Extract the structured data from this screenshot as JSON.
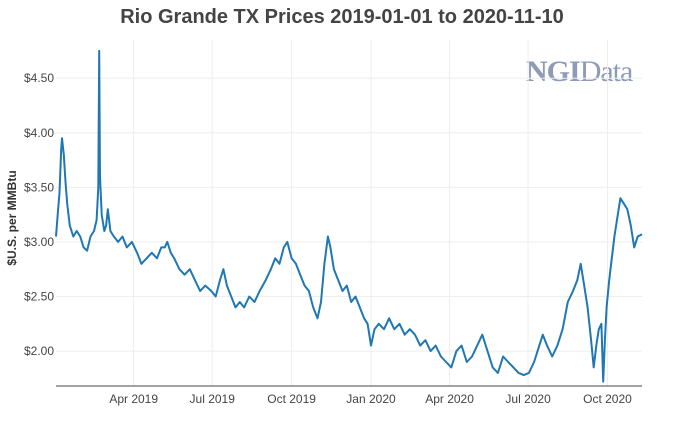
{
  "title": "Rio Grande TX Prices 2019-01-01 to 2020-11-10",
  "logo": {
    "part1": "NGI",
    "part2": "Data"
  },
  "chart_data": {
    "type": "line",
    "title": "Rio Grande TX Prices 2019-01-01 to 2020-11-10",
    "xlabel": "",
    "ylabel": "$U.S. per MMBtu",
    "xlim": [
      "2019-01-01",
      "2020-11-10"
    ],
    "ylim": [
      1.68,
      4.85
    ],
    "grid": true,
    "color": "#1f77b4",
    "x_ticks": [
      {
        "date": "2019-04-01",
        "label": "Apr 2019"
      },
      {
        "date": "2019-07-01",
        "label": "Jul 2019"
      },
      {
        "date": "2019-10-01",
        "label": "Oct 2019"
      },
      {
        "date": "2020-01-01",
        "label": "Jan 2020"
      },
      {
        "date": "2020-04-01",
        "label": "Apr 2020"
      },
      {
        "date": "2020-07-01",
        "label": "Jul 2020"
      },
      {
        "date": "2020-10-01",
        "label": "Oct 2020"
      }
    ],
    "y_ticks": [
      {
        "value": 2.0,
        "label": "$2.00"
      },
      {
        "value": 2.5,
        "label": "$2.50"
      },
      {
        "value": 3.0,
        "label": "$3.00"
      },
      {
        "value": 3.5,
        "label": "$3.50"
      },
      {
        "value": 4.0,
        "label": "$4.00"
      },
      {
        "value": 4.5,
        "label": "$4.50"
      }
    ],
    "series": [
      {
        "values": [
          [
            "2019-01-01",
            3.05
          ],
          [
            "2019-01-03",
            3.25
          ],
          [
            "2019-01-05",
            3.45
          ],
          [
            "2019-01-07",
            3.85
          ],
          [
            "2019-01-08",
            3.95
          ],
          [
            "2019-01-10",
            3.8
          ],
          [
            "2019-01-12",
            3.55
          ],
          [
            "2019-01-14",
            3.35
          ],
          [
            "2019-01-17",
            3.15
          ],
          [
            "2019-01-21",
            3.05
          ],
          [
            "2019-01-25",
            3.1
          ],
          [
            "2019-01-29",
            3.05
          ],
          [
            "2019-02-02",
            2.95
          ],
          [
            "2019-02-06",
            2.92
          ],
          [
            "2019-02-10",
            3.05
          ],
          [
            "2019-02-14",
            3.1
          ],
          [
            "2019-02-17",
            3.2
          ],
          [
            "2019-02-19",
            3.5
          ],
          [
            "2019-02-20",
            4.75
          ],
          [
            "2019-02-21",
            3.6
          ],
          [
            "2019-02-23",
            3.25
          ],
          [
            "2019-02-26",
            3.1
          ],
          [
            "2019-02-28",
            3.15
          ],
          [
            "2019-03-02",
            3.3
          ],
          [
            "2019-03-05",
            3.1
          ],
          [
            "2019-03-09",
            3.05
          ],
          [
            "2019-03-14",
            3.0
          ],
          [
            "2019-03-19",
            3.05
          ],
          [
            "2019-03-24",
            2.95
          ],
          [
            "2019-03-30",
            3.0
          ],
          [
            "2019-04-05",
            2.9
          ],
          [
            "2019-04-10",
            2.8
          ],
          [
            "2019-04-16",
            2.85
          ],
          [
            "2019-04-22",
            2.9
          ],
          [
            "2019-04-28",
            2.85
          ],
          [
            "2019-05-03",
            2.95
          ],
          [
            "2019-05-07",
            2.95
          ],
          [
            "2019-05-10",
            3.0
          ],
          [
            "2019-05-14",
            2.9
          ],
          [
            "2019-05-18",
            2.85
          ],
          [
            "2019-05-24",
            2.75
          ],
          [
            "2019-05-30",
            2.7
          ],
          [
            "2019-06-05",
            2.75
          ],
          [
            "2019-06-11",
            2.65
          ],
          [
            "2019-06-17",
            2.55
          ],
          [
            "2019-06-23",
            2.6
          ],
          [
            "2019-06-30",
            2.55
          ],
          [
            "2019-07-05",
            2.5
          ],
          [
            "2019-07-10",
            2.65
          ],
          [
            "2019-07-14",
            2.75
          ],
          [
            "2019-07-18",
            2.6
          ],
          [
            "2019-07-23",
            2.5
          ],
          [
            "2019-07-28",
            2.4
          ],
          [
            "2019-08-02",
            2.45
          ],
          [
            "2019-08-07",
            2.4
          ],
          [
            "2019-08-13",
            2.5
          ],
          [
            "2019-08-19",
            2.45
          ],
          [
            "2019-08-25",
            2.55
          ],
          [
            "2019-09-01",
            2.65
          ],
          [
            "2019-09-07",
            2.75
          ],
          [
            "2019-09-12",
            2.85
          ],
          [
            "2019-09-17",
            2.8
          ],
          [
            "2019-09-22",
            2.95
          ],
          [
            "2019-09-26",
            3.0
          ],
          [
            "2019-10-01",
            2.85
          ],
          [
            "2019-10-06",
            2.8
          ],
          [
            "2019-10-11",
            2.7
          ],
          [
            "2019-10-16",
            2.6
          ],
          [
            "2019-10-21",
            2.55
          ],
          [
            "2019-10-26",
            2.4
          ],
          [
            "2019-10-31",
            2.3
          ],
          [
            "2019-11-04",
            2.45
          ],
          [
            "2019-11-08",
            2.8
          ],
          [
            "2019-11-12",
            3.05
          ],
          [
            "2019-11-15",
            2.95
          ],
          [
            "2019-11-19",
            2.75
          ],
          [
            "2019-11-24",
            2.65
          ],
          [
            "2019-11-29",
            2.55
          ],
          [
            "2019-12-04",
            2.6
          ],
          [
            "2019-12-09",
            2.45
          ],
          [
            "2019-12-14",
            2.5
          ],
          [
            "2019-12-19",
            2.4
          ],
          [
            "2019-12-24",
            2.3
          ],
          [
            "2019-12-28",
            2.25
          ],
          [
            "2020-01-01",
            2.05
          ],
          [
            "2020-01-05",
            2.2
          ],
          [
            "2020-01-10",
            2.25
          ],
          [
            "2020-01-16",
            2.2
          ],
          [
            "2020-01-22",
            2.3
          ],
          [
            "2020-01-28",
            2.2
          ],
          [
            "2020-02-03",
            2.25
          ],
          [
            "2020-02-09",
            2.15
          ],
          [
            "2020-02-15",
            2.2
          ],
          [
            "2020-02-21",
            2.15
          ],
          [
            "2020-02-27",
            2.05
          ],
          [
            "2020-03-04",
            2.1
          ],
          [
            "2020-03-10",
            2.0
          ],
          [
            "2020-03-16",
            2.05
          ],
          [
            "2020-03-22",
            1.95
          ],
          [
            "2020-03-28",
            1.9
          ],
          [
            "2020-04-03",
            1.85
          ],
          [
            "2020-04-09",
            2.0
          ],
          [
            "2020-04-15",
            2.05
          ],
          [
            "2020-04-21",
            1.9
          ],
          [
            "2020-04-27",
            1.95
          ],
          [
            "2020-05-03",
            2.05
          ],
          [
            "2020-05-09",
            2.15
          ],
          [
            "2020-05-15",
            2.0
          ],
          [
            "2020-05-21",
            1.85
          ],
          [
            "2020-05-27",
            1.8
          ],
          [
            "2020-06-02",
            1.95
          ],
          [
            "2020-06-08",
            1.9
          ],
          [
            "2020-06-14",
            1.85
          ],
          [
            "2020-06-20",
            1.8
          ],
          [
            "2020-06-26",
            1.78
          ],
          [
            "2020-07-02",
            1.8
          ],
          [
            "2020-07-08",
            1.9
          ],
          [
            "2020-07-14",
            2.05
          ],
          [
            "2020-07-18",
            2.15
          ],
          [
            "2020-07-23",
            2.05
          ],
          [
            "2020-07-29",
            1.95
          ],
          [
            "2020-08-04",
            2.05
          ],
          [
            "2020-08-10",
            2.2
          ],
          [
            "2020-08-16",
            2.45
          ],
          [
            "2020-08-22",
            2.55
          ],
          [
            "2020-08-27",
            2.65
          ],
          [
            "2020-08-31",
            2.8
          ],
          [
            "2020-09-04",
            2.6
          ],
          [
            "2020-09-08",
            2.4
          ],
          [
            "2020-09-12",
            2.1
          ],
          [
            "2020-09-15",
            1.85
          ],
          [
            "2020-09-18",
            2.05
          ],
          [
            "2020-09-21",
            2.2
          ],
          [
            "2020-09-24",
            2.25
          ],
          [
            "2020-09-26",
            1.72
          ],
          [
            "2020-09-28",
            2.1
          ],
          [
            "2020-09-30",
            2.4
          ],
          [
            "2020-10-03",
            2.65
          ],
          [
            "2020-10-06",
            2.85
          ],
          [
            "2020-10-09",
            3.05
          ],
          [
            "2020-10-13",
            3.25
          ],
          [
            "2020-10-16",
            3.4
          ],
          [
            "2020-10-20",
            3.35
          ],
          [
            "2020-10-24",
            3.3
          ],
          [
            "2020-10-28",
            3.15
          ],
          [
            "2020-11-01",
            2.95
          ],
          [
            "2020-11-05",
            3.05
          ],
          [
            "2020-11-10",
            3.07
          ]
        ]
      }
    ]
  }
}
